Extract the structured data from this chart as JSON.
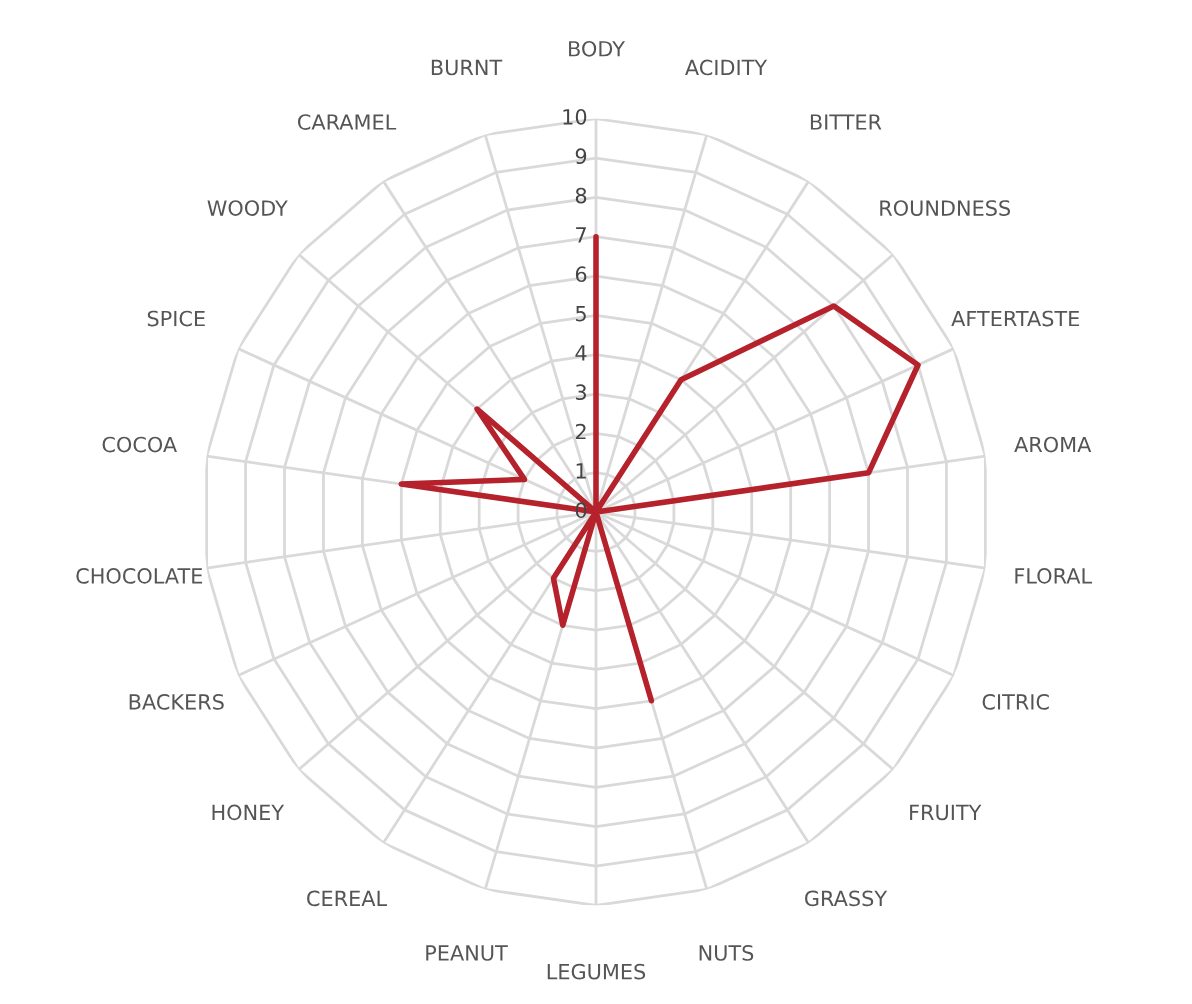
{
  "chart_data": {
    "type": "radar",
    "categories": [
      "BODY",
      "ACIDITY",
      "BITTER",
      "ROUNDNESS",
      "AFTERTASTE",
      "AROMA",
      "FLORAL",
      "CITRIC",
      "FRUITY",
      "GRASSY",
      "NUTS",
      "LEGUMES",
      "PEANUT",
      "CEREAL",
      "HONEY",
      "BACKERS",
      "CHOCOLATE",
      "COCOA",
      "SPICE",
      "WOODY",
      "CARAMEL",
      "BURNT"
    ],
    "series": [
      {
        "color": "#b5222b",
        "values": [
          7,
          0,
          4,
          8,
          9,
          7,
          0,
          0,
          0,
          0,
          5,
          0,
          3,
          2,
          0,
          0,
          0,
          5,
          2,
          4,
          0,
          0
        ]
      }
    ],
    "ylim": [
      0,
      10
    ],
    "yticks": [
      0,
      1,
      2,
      3,
      4,
      5,
      6,
      7,
      8,
      9,
      10
    ],
    "grid": true,
    "marker": "none",
    "line_style": "solid"
  }
}
